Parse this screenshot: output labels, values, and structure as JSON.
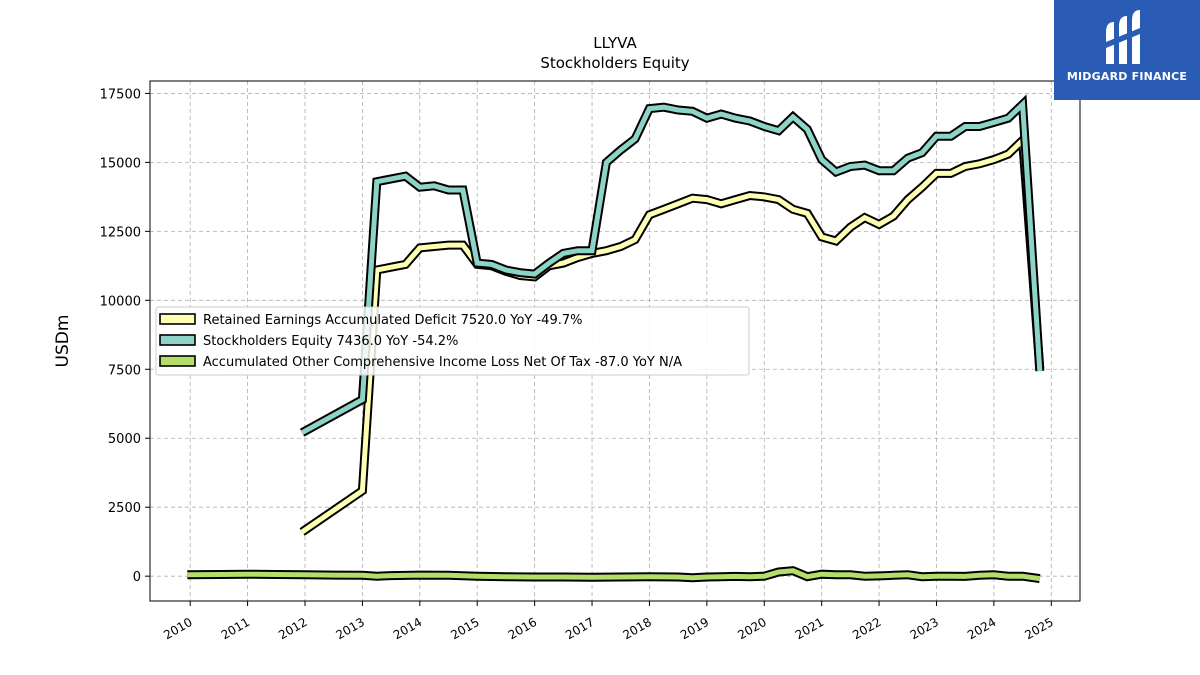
{
  "brand": {
    "name": "MIDGARD FINANCE",
    "bg_color": "#2a5bb5"
  },
  "chart_data": {
    "type": "line",
    "title": "LLYVA",
    "subtitle": "Stockholders  Equity",
    "ylabel": "USDm",
    "xlim": [
      2009.3,
      2025.5
    ],
    "ylim": [
      -900,
      17950
    ],
    "yticks": [
      0,
      2500,
      5000,
      7500,
      10000,
      12500,
      15000,
      17500
    ],
    "xticks": [
      2010,
      2011,
      2012,
      2013,
      2014,
      2015,
      2016,
      2017,
      2018,
      2019,
      2020,
      2021,
      2022,
      2023,
      2024,
      2025
    ],
    "grid": true,
    "legend_position": "center-left",
    "series": [
      {
        "name": "Retained Earnings Accumulated Deficit  7520.0 YoY -49.7%",
        "color": "#ffffb3",
        "x": [
          2011.95,
          2013.0,
          2013.25,
          2013.5,
          2013.75,
          2014.0,
          2014.25,
          2014.5,
          2014.75,
          2015.0,
          2015.25,
          2015.5,
          2015.75,
          2016.0,
          2016.25,
          2016.5,
          2016.75,
          2017.0,
          2017.25,
          2017.5,
          2017.75,
          2018.0,
          2018.25,
          2018.5,
          2018.75,
          2019.0,
          2019.25,
          2019.5,
          2019.75,
          2020.0,
          2020.25,
          2020.5,
          2020.75,
          2021.0,
          2021.25,
          2021.5,
          2021.75,
          2022.0,
          2022.25,
          2022.5,
          2022.75,
          2023.0,
          2023.25,
          2023.5,
          2023.75,
          2024.0,
          2024.25,
          2024.5,
          2024.8
        ],
        "y": [
          1600,
          3100,
          11100,
          11200,
          11300,
          11900,
          11950,
          12000,
          12000,
          11300,
          11250,
          11050,
          10900,
          10850,
          11250,
          11350,
          11550,
          11700,
          11800,
          11950,
          12200,
          13100,
          13300,
          13500,
          13700,
          13650,
          13500,
          13650,
          13800,
          13750,
          13650,
          13300,
          13150,
          12300,
          12150,
          12650,
          13000,
          12750,
          13050,
          13650,
          14100,
          14600,
          14600,
          14850,
          14950,
          15100,
          15300,
          15800,
          7520
        ]
      },
      {
        "name": "Stockholders Equity  7436.0 YoY -54.2%",
        "color": "#8dd3c7",
        "x": [
          2011.95,
          2013.0,
          2013.25,
          2013.5,
          2013.75,
          2014.0,
          2014.25,
          2014.5,
          2014.75,
          2015.0,
          2015.25,
          2015.5,
          2015.75,
          2016.0,
          2016.25,
          2016.5,
          2016.75,
          2017.0,
          2017.25,
          2017.5,
          2017.75,
          2018.0,
          2018.25,
          2018.5,
          2018.75,
          2019.0,
          2019.25,
          2019.5,
          2019.75,
          2020.0,
          2020.25,
          2020.5,
          2020.75,
          2021.0,
          2021.25,
          2021.5,
          2021.75,
          2022.0,
          2022.25,
          2022.5,
          2022.75,
          2023.0,
          2023.25,
          2023.5,
          2023.75,
          2024.0,
          2024.25,
          2024.5,
          2024.8
        ],
        "y": [
          5200,
          6400,
          14300,
          14400,
          14500,
          14100,
          14150,
          14000,
          14000,
          11350,
          11300,
          11100,
          11000,
          10950,
          11350,
          11700,
          11800,
          11800,
          15000,
          15450,
          15850,
          16950,
          17000,
          16900,
          16850,
          16600,
          16750,
          16600,
          16500,
          16300,
          16150,
          16650,
          16200,
          15100,
          14650,
          14850,
          14900,
          14700,
          14700,
          15150,
          15350,
          15950,
          15950,
          16300,
          16300,
          16450,
          16600,
          17100,
          7436
        ]
      },
      {
        "name": "Accumulated Other Comprehensive Income Loss Net Of Tax  -87.0 YoY N/A",
        "color": "#b3de69",
        "x": [
          2009.95,
          2010.5,
          2011.0,
          2011.5,
          2012.0,
          2012.5,
          2013.0,
          2013.25,
          2013.5,
          2014.0,
          2014.5,
          2015.0,
          2015.5,
          2016.0,
          2016.5,
          2017.0,
          2017.5,
          2018.0,
          2018.5,
          2018.75,
          2019.0,
          2019.25,
          2019.5,
          2019.75,
          2020.0,
          2020.25,
          2020.5,
          2020.75,
          2021.0,
          2021.25,
          2021.5,
          2021.75,
          2022.0,
          2022.25,
          2022.5,
          2022.75,
          2023.0,
          2023.25,
          2023.5,
          2023.75,
          2024.0,
          2024.25,
          2024.5,
          2024.8
        ],
        "y": [
          50,
          60,
          70,
          60,
          50,
          40,
          30,
          0,
          20,
          40,
          30,
          0,
          -20,
          -30,
          -30,
          -40,
          -30,
          -20,
          -30,
          -60,
          -30,
          -20,
          -10,
          -20,
          0,
          150,
          200,
          -20,
          70,
          50,
          50,
          0,
          10,
          30,
          50,
          -20,
          0,
          0,
          -10,
          30,
          50,
          0,
          0,
          -87
        ]
      }
    ]
  }
}
